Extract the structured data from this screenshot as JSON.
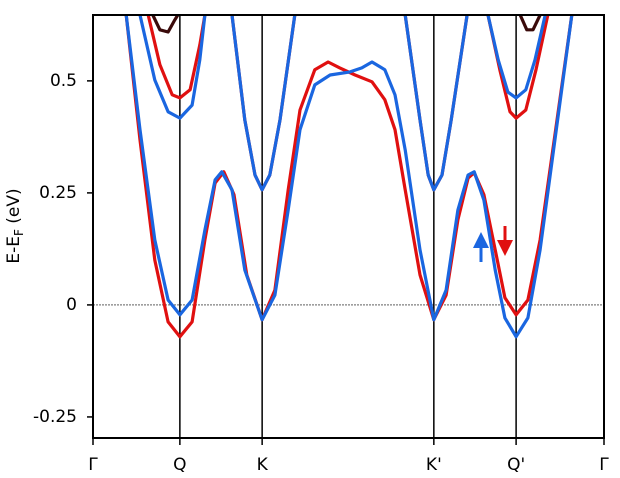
{
  "chart_data": {
    "type": "line",
    "y_label": {
      "main": "E-E",
      "subscript": "F",
      "unit": "(eV)"
    },
    "xlim": [
      0,
      1
    ],
    "xticks": [
      {
        "value": 0,
        "label": "Γ"
      },
      {
        "value": 0.17,
        "label": "Q"
      },
      {
        "value": 0.331,
        "label": "K"
      },
      {
        "value": 0.667,
        "label": "K'"
      },
      {
        "value": 0.828,
        "label": "Q'"
      },
      {
        "value": 1,
        "label": "Γ"
      }
    ],
    "ylim": [
      -0.297,
      0.647
    ],
    "yticks": [
      -0.25,
      0,
      0.25,
      0.5
    ],
    "xtick_lines": true,
    "zero_line": true,
    "series": [
      {
        "color": "#e01010",
        "x": [
          0.065,
          0.092,
          0.121,
          0.147,
          0.17,
          0.194,
          0.219,
          0.239,
          0.256,
          0.276,
          0.301,
          0.331,
          0.356,
          0.382,
          0.405,
          0.434,
          0.46,
          0.483,
          0.513,
          0.546,
          0.571,
          0.591,
          0.611,
          0.64,
          0.667,
          0.691,
          0.714,
          0.734,
          0.746,
          0.765,
          0.787,
          0.806,
          0.828,
          0.851,
          0.875,
          0.904,
          0.937
        ],
        "values": [
          0.647,
          0.368,
          0.1,
          -0.038,
          -0.071,
          -0.038,
          0.145,
          0.272,
          0.297,
          0.246,
          0.067,
          -0.033,
          0.033,
          0.257,
          0.435,
          0.525,
          0.542,
          0.529,
          0.513,
          0.498,
          0.458,
          0.391,
          0.257,
          0.067,
          -0.033,
          0.022,
          0.19,
          0.283,
          0.295,
          0.246,
          0.123,
          0.016,
          -0.022,
          0.011,
          0.145,
          0.379,
          0.647
        ]
      },
      {
        "color": "#1a66e0",
        "x": [
          0.065,
          0.092,
          0.121,
          0.147,
          0.17,
          0.194,
          0.219,
          0.239,
          0.252,
          0.272,
          0.297,
          0.331,
          0.356,
          0.382,
          0.405,
          0.434,
          0.464,
          0.503,
          0.526,
          0.546,
          0.571,
          0.591,
          0.611,
          0.64,
          0.667,
          0.691,
          0.714,
          0.734,
          0.746,
          0.765,
          0.787,
          0.806,
          0.828,
          0.851,
          0.875,
          0.904,
          0.937
        ],
        "values": [
          0.647,
          0.391,
          0.145,
          0.011,
          -0.022,
          0.011,
          0.167,
          0.279,
          0.297,
          0.257,
          0.078,
          -0.033,
          0.022,
          0.212,
          0.391,
          0.491,
          0.513,
          0.52,
          0.529,
          0.542,
          0.525,
          0.469,
          0.346,
          0.123,
          -0.033,
          0.033,
          0.212,
          0.29,
          0.297,
          0.234,
          0.078,
          -0.029,
          -0.071,
          -0.029,
          0.123,
          0.368,
          0.647
        ]
      },
      {
        "color": "#e01010",
        "x": [
          0.108,
          0.131,
          0.155,
          0.17,
          0.19,
          0.209,
          0.219
        ],
        "values": [
          0.647,
          0.536,
          0.469,
          0.462,
          0.48,
          0.58,
          0.647
        ]
      },
      {
        "color": "#1a66e0",
        "x": [
          0.092,
          0.121,
          0.147,
          0.17,
          0.194,
          0.209,
          0.219
        ],
        "values": [
          0.647,
          0.502,
          0.431,
          0.417,
          0.446,
          0.547,
          0.647
        ]
      },
      {
        "color": "#e01010",
        "x": [
          0.773,
          0.796,
          0.816,
          0.828,
          0.847,
          0.867,
          0.89
        ],
        "values": [
          0.647,
          0.525,
          0.431,
          0.417,
          0.435,
          0.525,
          0.647
        ]
      },
      {
        "color": "#1a66e0",
        "x": [
          0.773,
          0.793,
          0.812,
          0.828,
          0.847,
          0.865,
          0.885
        ],
        "values": [
          0.647,
          0.547,
          0.475,
          0.462,
          0.48,
          0.547,
          0.647
        ]
      },
      {
        "color": "#e01010",
        "x": [
          0.272,
          0.297,
          0.317,
          0.331,
          0.346,
          0.366,
          0.395
        ],
        "values": [
          0.647,
          0.413,
          0.29,
          0.257,
          0.29,
          0.413,
          0.647
        ]
      },
      {
        "color": "#1a66e0",
        "x": [
          0.272,
          0.297,
          0.317,
          0.331,
          0.346,
          0.366,
          0.395
        ],
        "values": [
          0.647,
          0.413,
          0.29,
          0.257,
          0.29,
          0.413,
          0.647
        ]
      },
      {
        "color": "#e01010",
        "x": [
          0.611,
          0.64,
          0.656,
          0.667,
          0.683,
          0.701,
          0.732
        ],
        "values": [
          0.647,
          0.413,
          0.29,
          0.257,
          0.29,
          0.413,
          0.647
        ]
      },
      {
        "color": "#1a66e0",
        "x": [
          0.611,
          0.64,
          0.656,
          0.667,
          0.683,
          0.701,
          0.732
        ],
        "values": [
          0.647,
          0.413,
          0.29,
          0.257,
          0.29,
          0.413,
          0.647
        ]
      },
      {
        "color": "#3a0a0a",
        "x": [
          0.117,
          0.131,
          0.147,
          0.16,
          0.166
        ],
        "values": [
          0.647,
          0.614,
          0.609,
          0.636,
          0.647
        ]
      },
      {
        "color": "#3a0a0a",
        "x": [
          0.836,
          0.849,
          0.861,
          0.875
        ],
        "values": [
          0.647,
          0.614,
          0.614,
          0.647
        ]
      }
    ]
  }
}
